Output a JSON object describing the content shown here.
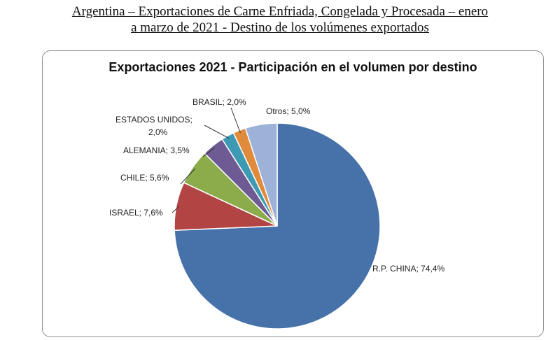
{
  "document": {
    "title_line1": "Argentina – Exportaciones de Carne Enfriada, Congelada y Procesada – enero",
    "title_line2": "a marzo de 2021 - Destino de los volúmenes exportados"
  },
  "chart_data": {
    "type": "pie",
    "title": "Exportaciones 2021 - Participación en el volumen por destino",
    "slices": [
      {
        "name": "R.P. CHINA",
        "value": 74.4,
        "label": "R.P. CHINA; 74,4%",
        "color": "#4672a9"
      },
      {
        "name": "ISRAEL",
        "value": 7.6,
        "label": "ISRAEL; 7,6%",
        "color": "#b24543"
      },
      {
        "name": "CHILE",
        "value": 5.6,
        "label": "CHILE; 5,6%",
        "color": "#8cac4c"
      },
      {
        "name": "ALEMANIA",
        "value": 3.5,
        "label": "ALEMANIA; 3,5%",
        "color": "#6f5b93"
      },
      {
        "name": "ESTADOS UNIDOS",
        "value": 2.0,
        "label_line1": "ESTADOS UNIDOS;",
        "label_line2": "2,0%",
        "color": "#3d9ab2"
      },
      {
        "name": "BRASIL",
        "value": 2.0,
        "label": "BRASIL; 2,0%",
        "color": "#e08a3c"
      },
      {
        "name": "Otros",
        "value": 5.0,
        "label": "Otros; 5,0%",
        "color": "#9cb2d9"
      }
    ]
  }
}
